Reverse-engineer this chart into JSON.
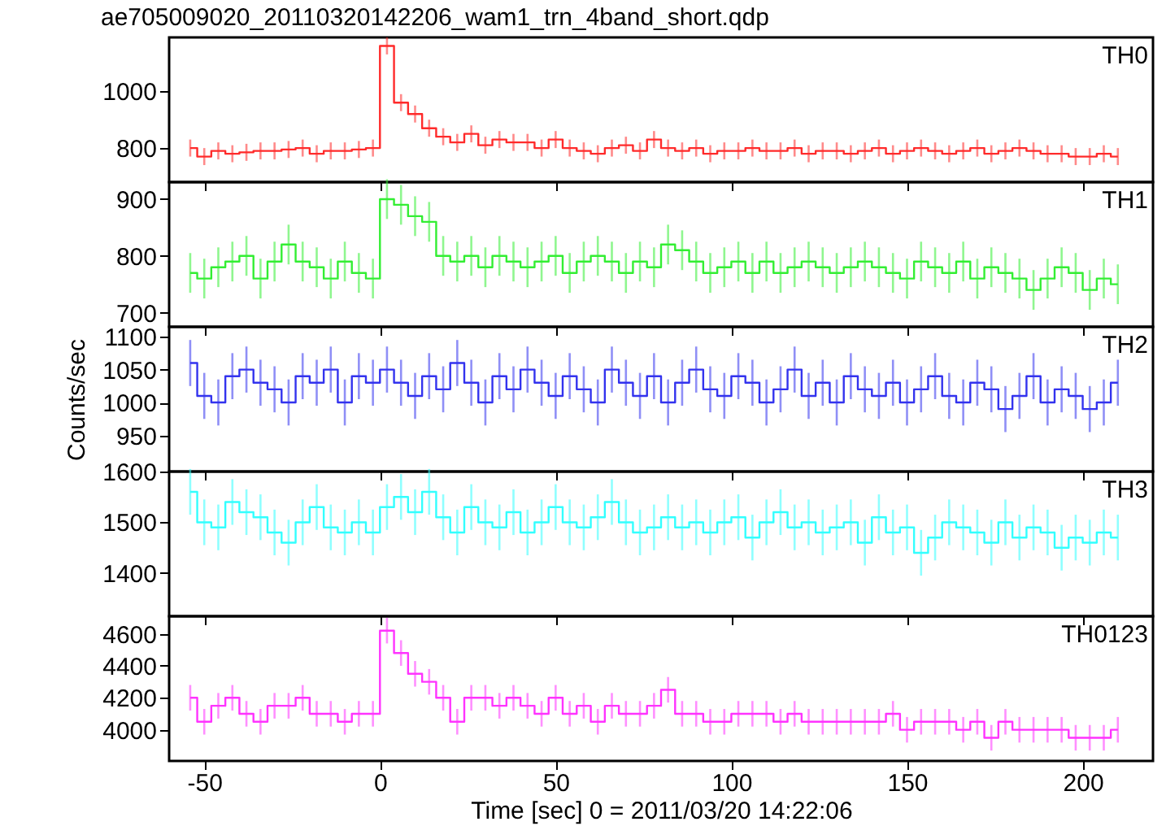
{
  "chart_data": [
    {
      "type": "step",
      "title": "ae705009020_20110320142206_wam1_trn_4band_short.qdp",
      "tick_labels": "y",
      "xlim": [
        -60,
        220
      ],
      "xticks": [
        -50,
        0,
        50,
        100,
        150,
        200
      ],
      "ylim": [
        680,
        1190
      ],
      "yticks": [
        800,
        1000
      ],
      "x": [
        -54,
        -50,
        -46,
        -42,
        -38,
        -34,
        -30,
        -26,
        -22,
        -18,
        -14,
        -10,
        -6,
        -2,
        2,
        6,
        10,
        14,
        18,
        22,
        26,
        30,
        34,
        38,
        42,
        46,
        50,
        54,
        58,
        62,
        66,
        70,
        74,
        78,
        82,
        86,
        90,
        94,
        98,
        102,
        106,
        110,
        114,
        118,
        122,
        126,
        130,
        134,
        138,
        142,
        146,
        150,
        154,
        158,
        162,
        166,
        170,
        174,
        178,
        182,
        186,
        190,
        194,
        198,
        202,
        206,
        210
      ],
      "annotations": [
        "TH0"
      ],
      "series": [
        {
          "color": "#ff2a2a",
          "values": [
            800,
            770,
            790,
            780,
            785,
            790,
            790,
            795,
            800,
            780,
            790,
            790,
            795,
            800,
            1160,
            960,
            920,
            870,
            840,
            820,
            850,
            810,
            830,
            820,
            820,
            800,
            830,
            800,
            790,
            780,
            800,
            810,
            790,
            830,
            800,
            790,
            800,
            780,
            790,
            790,
            800,
            790,
            790,
            800,
            780,
            790,
            790,
            780,
            790,
            800,
            780,
            790,
            800,
            790,
            780,
            790,
            800,
            780,
            790,
            800,
            790,
            780,
            780,
            770,
            770,
            780,
            770
          ],
          "errors": [
            30,
            30,
            30,
            30,
            30,
            30,
            30,
            30,
            30,
            30,
            30,
            30,
            30,
            30,
            30,
            30,
            30,
            30,
            30,
            30,
            30,
            30,
            30,
            30,
            30,
            30,
            30,
            30,
            30,
            30,
            30,
            30,
            30,
            30,
            30,
            30,
            30,
            30,
            30,
            30,
            30,
            30,
            30,
            30,
            30,
            30,
            30,
            30,
            30,
            30,
            30,
            30,
            30,
            30,
            30,
            30,
            30,
            30,
            30,
            30,
            30,
            30,
            30,
            30,
            30,
            30,
            30
          ]
        }
      ]
    },
    {
      "type": "step",
      "tick_labels": "y",
      "xlim": [
        -60,
        220
      ],
      "xticks": [
        -50,
        0,
        50,
        100,
        150,
        200
      ],
      "ylim": [
        675,
        930
      ],
      "yticks": [
        700,
        800,
        900
      ],
      "x": [
        -54,
        -50,
        -46,
        -42,
        -38,
        -34,
        -30,
        -26,
        -22,
        -18,
        -14,
        -10,
        -6,
        -2,
        2,
        6,
        10,
        14,
        18,
        22,
        26,
        30,
        34,
        38,
        42,
        46,
        50,
        54,
        58,
        62,
        66,
        70,
        74,
        78,
        82,
        86,
        90,
        94,
        98,
        102,
        106,
        110,
        114,
        118,
        122,
        126,
        130,
        134,
        138,
        142,
        146,
        150,
        154,
        158,
        162,
        166,
        170,
        174,
        178,
        182,
        186,
        190,
        194,
        198,
        202,
        206,
        210
      ],
      "annotations": [
        "TH1"
      ],
      "series": [
        {
          "color": "#33ee33",
          "values": [
            770,
            760,
            780,
            790,
            800,
            760,
            790,
            820,
            790,
            780,
            760,
            790,
            770,
            760,
            900,
            890,
            870,
            860,
            800,
            790,
            800,
            780,
            800,
            790,
            780,
            790,
            800,
            770,
            790,
            800,
            790,
            770,
            790,
            780,
            820,
            810,
            790,
            770,
            780,
            790,
            770,
            790,
            770,
            780,
            790,
            780,
            770,
            780,
            790,
            780,
            770,
            760,
            790,
            780,
            770,
            790,
            760,
            780,
            770,
            760,
            740,
            760,
            780,
            770,
            740,
            760,
            750
          ],
          "errors": [
            35,
            35,
            35,
            35,
            35,
            35,
            35,
            35,
            35,
            35,
            35,
            35,
            35,
            35,
            35,
            35,
            35,
            35,
            35,
            35,
            35,
            35,
            35,
            35,
            35,
            35,
            35,
            35,
            35,
            35,
            35,
            35,
            35,
            35,
            35,
            35,
            35,
            35,
            35,
            35,
            35,
            35,
            35,
            35,
            35,
            35,
            35,
            35,
            35,
            35,
            35,
            35,
            35,
            35,
            35,
            35,
            35,
            35,
            35,
            35,
            35,
            35,
            35,
            35,
            35,
            35,
            35
          ]
        }
      ]
    },
    {
      "type": "step",
      "tick_labels": "y",
      "ylabel": "Counts/sec",
      "xlim": [
        -60,
        220
      ],
      "xticks": [
        -50,
        0,
        50,
        100,
        150,
        200
      ],
      "ylim": [
        895,
        1115
      ],
      "yticks": [
        950,
        1000,
        1050,
        1100
      ],
      "x": [
        -54,
        -50,
        -46,
        -42,
        -38,
        -34,
        -30,
        -26,
        -22,
        -18,
        -14,
        -10,
        -6,
        -2,
        2,
        6,
        10,
        14,
        18,
        22,
        26,
        30,
        34,
        38,
        42,
        46,
        50,
        54,
        58,
        62,
        66,
        70,
        74,
        78,
        82,
        86,
        90,
        94,
        98,
        102,
        106,
        110,
        114,
        118,
        122,
        126,
        130,
        134,
        138,
        142,
        146,
        150,
        154,
        158,
        162,
        166,
        170,
        174,
        178,
        182,
        186,
        190,
        194,
        198,
        202,
        206,
        210
      ],
      "annotations": [
        "TH2"
      ],
      "series": [
        {
          "color": "#3333ee",
          "values": [
            1060,
            1010,
            1000,
            1040,
            1050,
            1030,
            1020,
            1000,
            1040,
            1030,
            1050,
            1000,
            1040,
            1030,
            1050,
            1030,
            1010,
            1040,
            1020,
            1060,
            1030,
            1000,
            1040,
            1020,
            1050,
            1030,
            1010,
            1040,
            1020,
            1000,
            1050,
            1030,
            1010,
            1040,
            1000,
            1030,
            1050,
            1020,
            1010,
            1040,
            1030,
            1000,
            1020,
            1050,
            1010,
            1030,
            1000,
            1040,
            1020,
            1010,
            1030,
            1000,
            1020,
            1040,
            1010,
            1000,
            1030,
            1020,
            990,
            1010,
            1040,
            1000,
            1020,
            1010,
            990,
            1000,
            1030
          ],
          "errors": [
            35,
            35,
            35,
            35,
            35,
            35,
            35,
            35,
            35,
            35,
            35,
            35,
            35,
            35,
            35,
            35,
            35,
            35,
            35,
            35,
            35,
            35,
            35,
            35,
            35,
            35,
            35,
            35,
            35,
            35,
            35,
            35,
            35,
            35,
            35,
            35,
            35,
            35,
            35,
            35,
            35,
            35,
            35,
            35,
            35,
            35,
            35,
            35,
            35,
            35,
            35,
            35,
            35,
            35,
            35,
            35,
            35,
            35,
            35,
            35,
            35,
            35,
            35,
            35,
            35,
            35,
            35
          ]
        }
      ]
    },
    {
      "type": "step",
      "tick_labels": "y",
      "xlim": [
        -60,
        220
      ],
      "xticks": [
        -50,
        0,
        50,
        100,
        150,
        200
      ],
      "ylim": [
        1315,
        1600
      ],
      "yticks": [
        1400,
        1500,
        1600
      ],
      "x": [
        -54,
        -50,
        -46,
        -42,
        -38,
        -34,
        -30,
        -26,
        -22,
        -18,
        -14,
        -10,
        -6,
        -2,
        2,
        6,
        10,
        14,
        18,
        22,
        26,
        30,
        34,
        38,
        42,
        46,
        50,
        54,
        58,
        62,
        66,
        70,
        74,
        78,
        82,
        86,
        90,
        94,
        98,
        102,
        106,
        110,
        114,
        118,
        122,
        126,
        130,
        134,
        138,
        142,
        146,
        150,
        154,
        158,
        162,
        166,
        170,
        174,
        178,
        182,
        186,
        190,
        194,
        198,
        202,
        206,
        210
      ],
      "annotations": [
        "TH3"
      ],
      "series": [
        {
          "color": "#33ffff",
          "values": [
            1560,
            1500,
            1490,
            1540,
            1520,
            1510,
            1480,
            1460,
            1500,
            1530,
            1490,
            1480,
            1500,
            1480,
            1530,
            1550,
            1520,
            1560,
            1510,
            1480,
            1530,
            1500,
            1490,
            1520,
            1480,
            1500,
            1530,
            1500,
            1490,
            1510,
            1540,
            1500,
            1480,
            1490,
            1510,
            1490,
            1500,
            1480,
            1500,
            1510,
            1470,
            1500,
            1520,
            1490,
            1500,
            1480,
            1490,
            1500,
            1460,
            1510,
            1480,
            1490,
            1440,
            1470,
            1500,
            1490,
            1480,
            1460,
            1500,
            1470,
            1490,
            1480,
            1450,
            1470,
            1460,
            1480,
            1470
          ],
          "errors": [
            45,
            45,
            45,
            45,
            45,
            45,
            45,
            45,
            45,
            45,
            45,
            45,
            45,
            45,
            45,
            45,
            45,
            45,
            45,
            45,
            45,
            45,
            45,
            45,
            45,
            45,
            45,
            45,
            45,
            45,
            45,
            45,
            45,
            45,
            45,
            45,
            45,
            45,
            45,
            45,
            45,
            45,
            45,
            45,
            45,
            45,
            45,
            45,
            45,
            45,
            45,
            45,
            45,
            45,
            45,
            45,
            45,
            45,
            45,
            45,
            45,
            45,
            45,
            45,
            45,
            45,
            45
          ]
        }
      ]
    },
    {
      "type": "step",
      "xlabel": "Time [sec] 0 = 2011/03/20 14:22:06",
      "xlim": [
        -60,
        220
      ],
      "xticks": [
        -50,
        0,
        50,
        100,
        150,
        200
      ],
      "ylim": [
        3805,
        4710
      ],
      "yticks": [
        4000,
        4200,
        4400,
        4600
      ],
      "x": [
        -54,
        -50,
        -46,
        -42,
        -38,
        -34,
        -30,
        -26,
        -22,
        -18,
        -14,
        -10,
        -6,
        -2,
        2,
        6,
        10,
        14,
        18,
        22,
        26,
        30,
        34,
        38,
        42,
        46,
        50,
        54,
        58,
        62,
        66,
        70,
        74,
        78,
        82,
        86,
        90,
        94,
        98,
        102,
        106,
        110,
        114,
        118,
        122,
        126,
        130,
        134,
        138,
        142,
        146,
        150,
        154,
        158,
        162,
        166,
        170,
        174,
        178,
        182,
        186,
        190,
        194,
        198,
        202,
        206,
        210
      ],
      "annotations": [
        "TH0123"
      ],
      "series": [
        {
          "color": "#ff33ff",
          "values": [
            4200,
            4050,
            4150,
            4200,
            4100,
            4050,
            4150,
            4150,
            4200,
            4100,
            4100,
            4050,
            4100,
            4100,
            4620,
            4480,
            4350,
            4300,
            4200,
            4050,
            4200,
            4200,
            4150,
            4200,
            4150,
            4100,
            4200,
            4100,
            4150,
            4050,
            4150,
            4100,
            4100,
            4150,
            4250,
            4100,
            4100,
            4050,
            4050,
            4100,
            4100,
            4100,
            4050,
            4100,
            4050,
            4050,
            4050,
            4050,
            4050,
            4050,
            4100,
            4000,
            4050,
            4050,
            4050,
            4000,
            4050,
            3950,
            4050,
            4000,
            4000,
            4000,
            4000,
            3950,
            3950,
            3950,
            4000
          ],
          "errors": [
            80,
            80,
            80,
            80,
            80,
            80,
            80,
            80,
            80,
            80,
            80,
            80,
            80,
            80,
            80,
            80,
            80,
            80,
            80,
            80,
            80,
            80,
            80,
            80,
            80,
            80,
            80,
            80,
            80,
            80,
            80,
            80,
            80,
            80,
            80,
            80,
            80,
            80,
            80,
            80,
            80,
            80,
            80,
            80,
            80,
            80,
            80,
            80,
            80,
            80,
            80,
            80,
            80,
            80,
            80,
            80,
            80,
            80,
            80,
            80,
            80,
            80,
            80,
            80,
            80,
            80,
            80
          ]
        }
      ]
    }
  ]
}
